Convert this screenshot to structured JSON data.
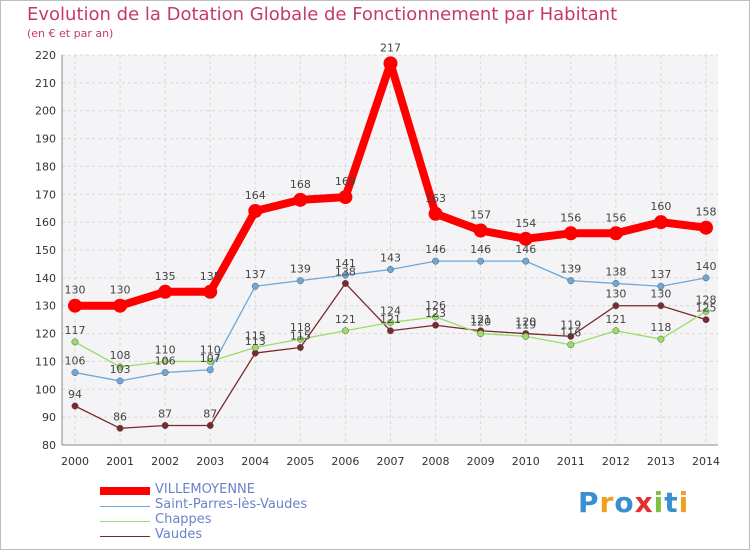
{
  "chart_data": {
    "type": "line",
    "title": "Evolution de la Dotation Globale de Fonctionnement par Habitant",
    "subtitle": "(en € et par an)",
    "x": [
      "2000",
      "2001",
      "2002",
      "2003",
      "2004",
      "2005",
      "2006",
      "2007",
      "2008",
      "2009",
      "2010",
      "2011",
      "2012",
      "2013",
      "2014"
    ],
    "ylim": [
      80,
      220
    ],
    "yticks": [
      80,
      90,
      100,
      110,
      120,
      130,
      140,
      150,
      160,
      170,
      180,
      190,
      200,
      210,
      220
    ],
    "grid": true,
    "legend_position": "bottom-left",
    "series": [
      {
        "name": "VILLEMOYENNE",
        "color": "#ff0000",
        "values": [
          130,
          130,
          135,
          135,
          164,
          168,
          169,
          217,
          163,
          157,
          154,
          156,
          156,
          160,
          158
        ]
      },
      {
        "name": "Saint-Parres-lès-Vaudes",
        "color": "#6fa8d8",
        "values": [
          106,
          103,
          106,
          107,
          137,
          139,
          141,
          143,
          146,
          146,
          146,
          139,
          138,
          137,
          140
        ]
      },
      {
        "name": "Chappes",
        "color": "#99dd66",
        "values": [
          117,
          108,
          110,
          110,
          115,
          118,
          121,
          124,
          126,
          120,
          119,
          116,
          121,
          118,
          128
        ]
      },
      {
        "name": "Vaudes",
        "color": "#7a2a2a",
        "values": [
          94,
          86,
          87,
          87,
          113,
          115,
          138,
          121,
          123,
          121,
          120,
          119,
          130,
          130,
          125
        ]
      }
    ]
  },
  "logo": {
    "letters": [
      "P",
      "r",
      "o",
      "x",
      "i",
      "t",
      "i"
    ],
    "colors": [
      "#3a8fd0",
      "#f0a020",
      "#3a8fd0",
      "#e03030",
      "#80c040",
      "#3a8fd0",
      "#f0a020"
    ]
  }
}
